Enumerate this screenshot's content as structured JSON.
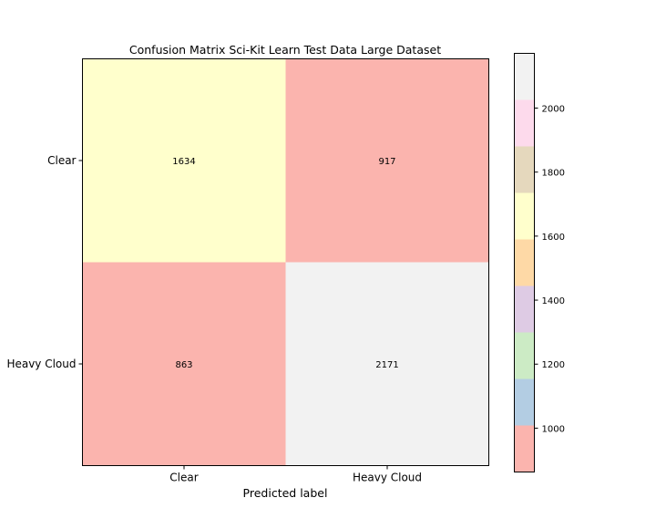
{
  "chart_data": {
    "type": "heatmap",
    "title": "Confusion Matrix Sci-Kit Learn Test Data Large Dataset",
    "xlabel": "Predicted label",
    "ylabel": "",
    "x_categories": [
      "Clear",
      "Heavy Cloud"
    ],
    "y_categories": [
      "Clear",
      "Heavy Cloud"
    ],
    "values": [
      [
        1634,
        917
      ],
      [
        863,
        2171
      ]
    ],
    "colormap": "Pastel1",
    "colorbar": {
      "ticks": [
        1000,
        1200,
        1400,
        1600,
        1800,
        2000
      ],
      "range": [
        863,
        2171
      ],
      "bands": [
        "#fbb4ae",
        "#b3cde3",
        "#ccebc5",
        "#decbe4",
        "#fed9a6",
        "#ffffcc",
        "#e5d8bd",
        "#fddaec",
        "#f2f2f2"
      ]
    },
    "grid": false
  }
}
